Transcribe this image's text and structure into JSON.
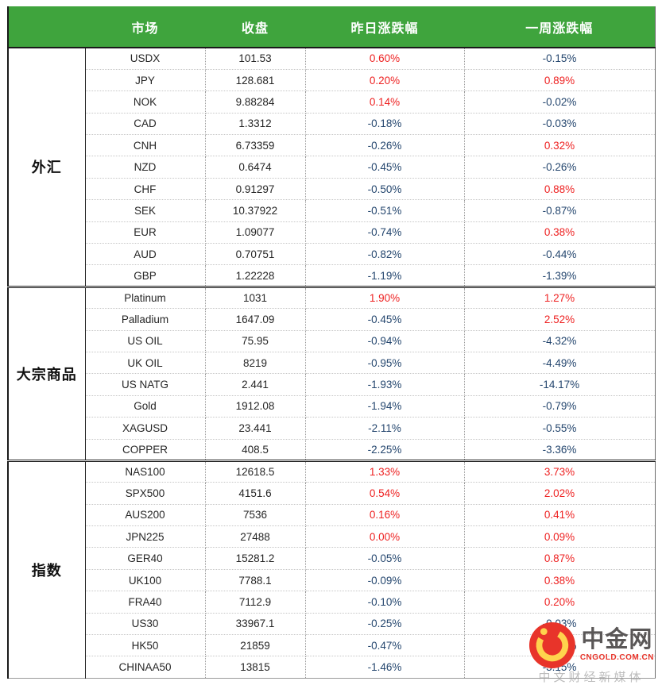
{
  "chart_data": {
    "type": "table",
    "columns": [
      "市场",
      "收盘",
      "昨日涨跌幅",
      "一周涨跌幅"
    ],
    "groups": [
      {
        "label": "外汇",
        "rows": [
          [
            "USDX",
            "101.53",
            "0.60%",
            "-0.15%"
          ],
          [
            "JPY",
            "128.681",
            "0.20%",
            "0.89%"
          ],
          [
            "NOK",
            "9.88284",
            "0.14%",
            "-0.02%"
          ],
          [
            "CAD",
            "1.3312",
            "-0.18%",
            "-0.03%"
          ],
          [
            "CNH",
            "6.73359",
            "-0.26%",
            "0.32%"
          ],
          [
            "NZD",
            "0.6474",
            "-0.45%",
            "-0.26%"
          ],
          [
            "CHF",
            "0.91297",
            "-0.50%",
            "0.88%"
          ],
          [
            "SEK",
            "10.37922",
            "-0.51%",
            "-0.87%"
          ],
          [
            "EUR",
            "1.09077",
            "-0.74%",
            "0.38%"
          ],
          [
            "AUD",
            "0.70751",
            "-0.82%",
            "-0.44%"
          ],
          [
            "GBP",
            "1.22228",
            "-1.19%",
            "-1.39%"
          ]
        ]
      },
      {
        "label": "大宗商品",
        "rows": [
          [
            "Platinum",
            "1031",
            "1.90%",
            "1.27%"
          ],
          [
            "Palladium",
            "1647.09",
            "-0.45%",
            "2.52%"
          ],
          [
            "US OIL",
            "75.95",
            "-0.94%",
            "-4.32%"
          ],
          [
            "UK OIL",
            "8219",
            "-0.95%",
            "-4.49%"
          ],
          [
            "US NATG",
            "2.441",
            "-1.93%",
            "-14.17%"
          ],
          [
            "Gold",
            "1912.08",
            "-1.94%",
            "-0.79%"
          ],
          [
            "XAGUSD",
            "23.441",
            "-2.11%",
            "-0.55%"
          ],
          [
            "COPPER",
            "408.5",
            "-2.25%",
            "-3.36%"
          ]
        ]
      },
      {
        "label": "指数",
        "rows": [
          [
            "NAS100",
            "12618.5",
            "1.33%",
            "3.73%"
          ],
          [
            "SPX500",
            "4151.6",
            "0.54%",
            "2.02%"
          ],
          [
            "AUS200",
            "7536",
            "0.16%",
            "0.41%"
          ],
          [
            "JPN225",
            "27488",
            "0.00%",
            "0.09%"
          ],
          [
            "GER40",
            "15281.2",
            "-0.05%",
            "0.87%"
          ],
          [
            "UK100",
            "7788.1",
            "-0.09%",
            "0.38%"
          ],
          [
            "FRA40",
            "7112.9",
            "-0.10%",
            "0.20%"
          ],
          [
            "US30",
            "33967.1",
            "-0.25%",
            "-0.03%"
          ],
          [
            "HK50",
            "21859",
            "-0.47%",
            "-3.39%"
          ],
          [
            "CHINAA50",
            "13815",
            "-1.46%",
            "-3.15%"
          ]
        ]
      }
    ]
  },
  "watermark": {
    "brand": "中金网",
    "domain": "CNGOLD.COM.CN",
    "tagline": "中文财经新媒体"
  },
  "colors": {
    "header_bg": "#3fa43d",
    "pos": "#ee2222",
    "neg": "#24466e",
    "logo_red": "#e8342a",
    "logo_gold": "#ffd34d"
  }
}
